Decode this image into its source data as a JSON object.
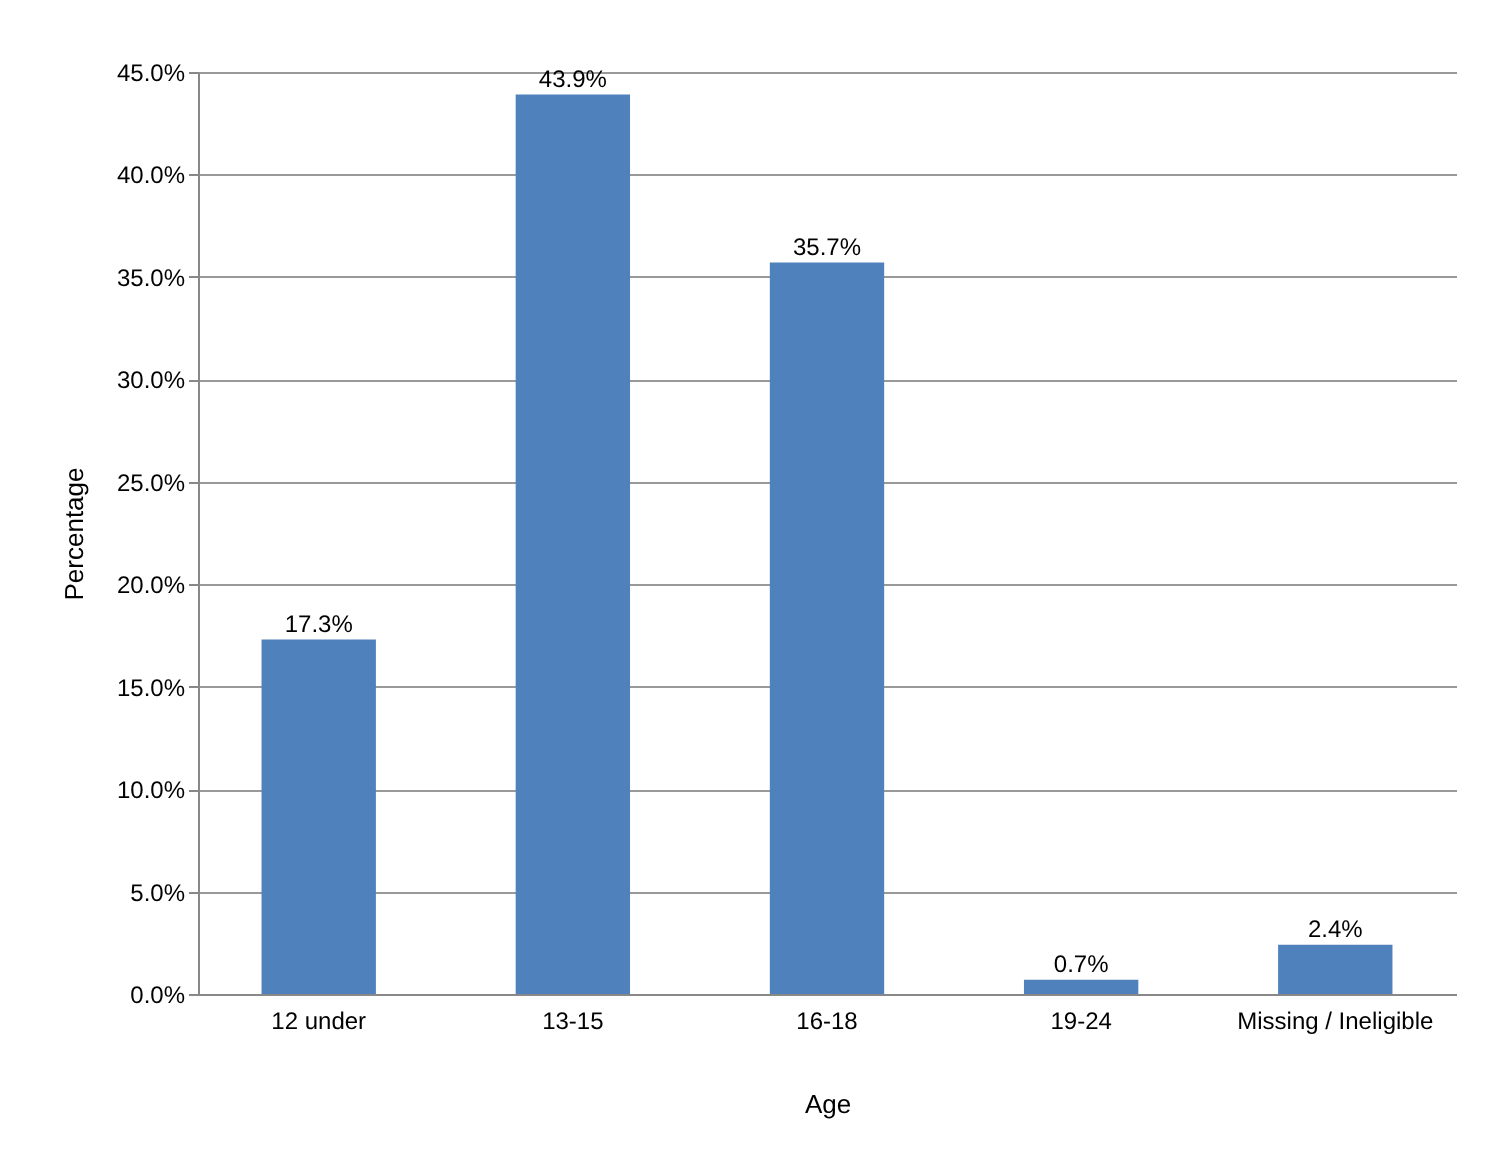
{
  "chart_data": {
    "type": "bar",
    "xlabel": "Age",
    "ylabel": "Percentage",
    "categories": [
      "12 under",
      "13-15",
      "16-18",
      "19-24",
      "Missing / Ineligible"
    ],
    "values": [
      17.3,
      43.9,
      35.7,
      0.7,
      2.4
    ],
    "value_labels": [
      "17.3%",
      "43.9%",
      "35.7%",
      "0.7%",
      "2.4%"
    ],
    "color": "#4f81bd",
    "ylim": [
      0,
      45
    ],
    "yticks": [
      {
        "value": 0,
        "label": "0.0%"
      },
      {
        "value": 5,
        "label": "5.0%"
      },
      {
        "value": 10,
        "label": "10.0%"
      },
      {
        "value": 15,
        "label": "15.0%"
      },
      {
        "value": 20,
        "label": "20.0%"
      },
      {
        "value": 25,
        "label": "25.0%"
      },
      {
        "value": 30,
        "label": "30.0%"
      },
      {
        "value": 35,
        "label": "35.0%"
      },
      {
        "value": 40,
        "label": "40.0%"
      },
      {
        "value": 45,
        "label": "45.0%"
      }
    ],
    "grid": true
  }
}
